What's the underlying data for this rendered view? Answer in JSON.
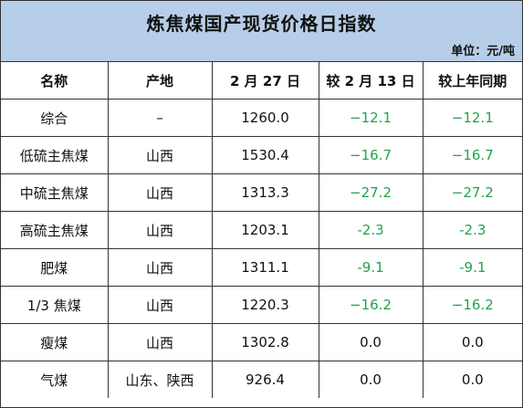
{
  "title": "炼焦煤国产现货价格日指数",
  "unit": "单位：元/吨",
  "columns": [
    "名称",
    "产地",
    "2 月 27 日",
    "较 2 月 13 日",
    "较上年同期"
  ],
  "rows": [
    {
      "name": "综合",
      "origin": "–",
      "price": "1260.0",
      "vs_feb13": "−12.1",
      "vs_last_year": "−12.1"
    },
    {
      "name": "低硫主焦煤",
      "origin": "山西",
      "price": "1530.4",
      "vs_feb13": "−16.7",
      "vs_last_year": "−16.7"
    },
    {
      "name": "中硫主焦煤",
      "origin": "山西",
      "price": "1313.3",
      "vs_feb13": "−27.2",
      "vs_last_year": "−27.2"
    },
    {
      "name": "高硫主焦煤",
      "origin": "山西",
      "price": "1203.1",
      "vs_feb13": "-2.3",
      "vs_last_year": "-2.3"
    },
    {
      "name": "肥煤",
      "origin": "山西",
      "price": "1311.1",
      "vs_feb13": "-9.1",
      "vs_last_year": "-9.1"
    },
    {
      "name": "1/3 焦煤",
      "origin": "山西",
      "price": "1220.3",
      "vs_feb13": "−16.2",
      "vs_last_year": "−16.2"
    },
    {
      "name": "瘦煤",
      "origin": "山西",
      "price": "1302.8",
      "vs_feb13": "0.0",
      "vs_last_year": "0.0"
    },
    {
      "name": "气煤",
      "origin": "山东、陕西",
      "price": "926.4",
      "vs_feb13": "0.0",
      "vs_last_year": "0.0"
    }
  ],
  "colors": {
    "header_bg": "#b7cee8",
    "negative": "#22a34a"
  }
}
